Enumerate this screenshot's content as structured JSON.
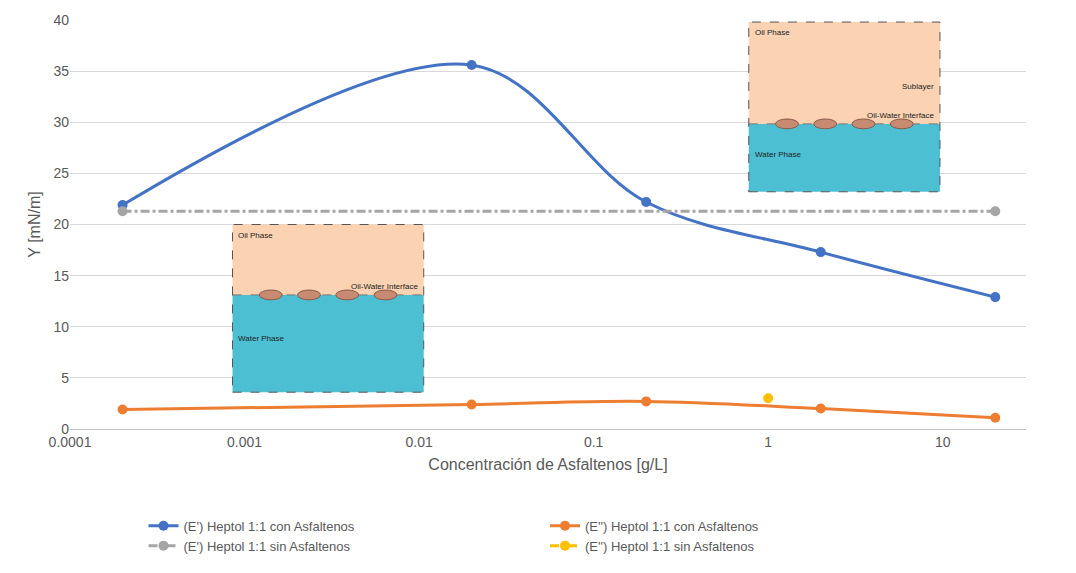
{
  "chart_data": {
    "type": "line",
    "x_label": "Concentración de Asfaltenos [g/L]",
    "y_label": "Y [mN/m]",
    "log": "x",
    "grid": true,
    "legend": "bottom",
    "xlim": [
      0.0001,
      30
    ],
    "xticks": [
      0.0001,
      0.001,
      0.01,
      0.1,
      1,
      10
    ],
    "ylim": [
      0,
      40
    ],
    "yticks": [
      0,
      5,
      10,
      15,
      20,
      25,
      30,
      35,
      40
    ],
    "series": [
      {
        "name": "(E') Heptol 1:1 con Asfaltenos",
        "color": "#4472c4",
        "marker": "circle",
        "line_style": "solid",
        "x": [
          0.0002,
          0.02,
          0.2,
          2,
          20
        ],
        "values": [
          21.9,
          35.6,
          22.2,
          17.3,
          12.9
        ]
      },
      {
        "name": "(E'') Heptol 1:1 con Asfaltenos",
        "color": "#ed7d31",
        "marker": "circle",
        "line_style": "solid",
        "x": [
          0.0002,
          0.02,
          0.2,
          2,
          20
        ],
        "values": [
          1.9,
          2.4,
          2.7,
          2.0,
          1.1
        ]
      },
      {
        "name": "(E') Heptol 1:1 sin Asfaltenos",
        "color": "#a5a5a5",
        "marker": "circle",
        "line_style": "dashdot",
        "x": [
          0.0002,
          20
        ],
        "values": [
          21.3,
          21.3
        ]
      },
      {
        "name": "(E'') Heptol 1:1 sin Asfaltenos",
        "color": "#ffc000",
        "marker": "circle",
        "line_style": "dash",
        "x": [
          1
        ],
        "values": [
          3.0
        ]
      }
    ],
    "insets": [
      [
        "Oil Phase",
        "Oil-Water Interface",
        "Water Phase"
      ],
      [
        "Oil Phase",
        "Sublayer",
        "Oil-Water Interface",
        "Water Phase"
      ]
    ]
  }
}
